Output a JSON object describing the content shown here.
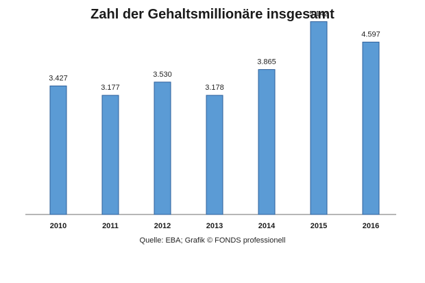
{
  "chart_data": {
    "type": "bar",
    "title": "Zahl der Gehaltsmillionäre insgesamt",
    "categories": [
      "2010",
      "2011",
      "2012",
      "2013",
      "2014",
      "2015",
      "2016"
    ],
    "values": [
      3427,
      3177,
      3530,
      3178,
      3865,
      5142,
      4597
    ],
    "data_labels": [
      "3.427",
      "3.177",
      "3.530",
      "3.178",
      "3.865",
      "5.142",
      "4.597"
    ],
    "ylim": [
      0,
      5500
    ],
    "grid": false,
    "legend": "none",
    "bar_color": "#5b9bd5",
    "bar_border_color": "#2e5f9a",
    "source": "Quelle: EBA; Grafik © FONDS professionell"
  }
}
